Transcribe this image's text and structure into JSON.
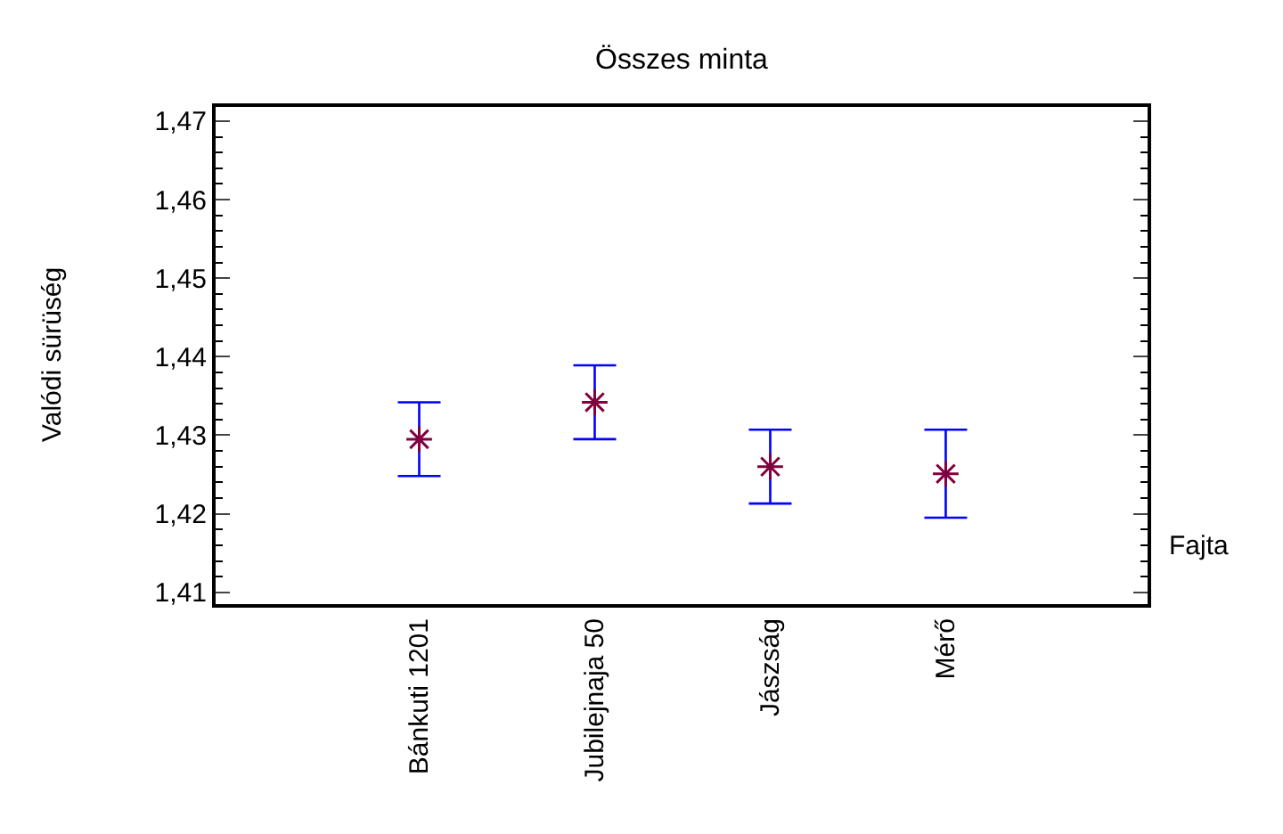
{
  "chart_data": {
    "type": "scatter",
    "title": "Összes minta",
    "xlabel": "Fajta",
    "ylabel": "Valódi sürüség",
    "categories": [
      "Bánkuti 1201",
      "Jubilejnaja 50",
      "Jászság",
      "Mérő"
    ],
    "series": [
      {
        "color": "#800040",
        "values": [
          1.4295,
          1.4342,
          1.426,
          1.4251
        ],
        "errors": [
          0.0047,
          0.0047,
          0.0047,
          0.0056
        ]
      }
    ],
    "ylim": [
      1.4085,
      1.4718
    ],
    "yticks": [
      {
        "value": 1.41,
        "label": "1,41"
      },
      {
        "value": 1.412,
        "label": null
      },
      {
        "value": 1.414,
        "label": null
      },
      {
        "value": 1.416,
        "label": null
      },
      {
        "value": 1.418,
        "label": null
      },
      {
        "value": 1.42,
        "label": "1,42"
      },
      {
        "value": 1.422,
        "label": null
      },
      {
        "value": 1.424,
        "label": null
      },
      {
        "value": 1.426,
        "label": null
      },
      {
        "value": 1.428,
        "label": null
      },
      {
        "value": 1.43,
        "label": "1,43"
      },
      {
        "value": 1.432,
        "label": null
      },
      {
        "value": 1.434,
        "label": null
      },
      {
        "value": 1.436,
        "label": null
      },
      {
        "value": 1.438,
        "label": null
      },
      {
        "value": 1.44,
        "label": "1,44"
      },
      {
        "value": 1.442,
        "label": null
      },
      {
        "value": 1.444,
        "label": null
      },
      {
        "value": 1.446,
        "label": null
      },
      {
        "value": 1.448,
        "label": null
      },
      {
        "value": 1.45,
        "label": "1,45"
      },
      {
        "value": 1.452,
        "label": null
      },
      {
        "value": 1.454,
        "label": null
      },
      {
        "value": 1.456,
        "label": null
      },
      {
        "value": 1.458,
        "label": null
      },
      {
        "value": 1.46,
        "label": "1,46"
      },
      {
        "value": 1.462,
        "label": null
      },
      {
        "value": 1.464,
        "label": null
      },
      {
        "value": 1.466,
        "label": null
      },
      {
        "value": 1.468,
        "label": null
      },
      {
        "value": 1.47,
        "label": "1,47"
      }
    ],
    "marker": "cross"
  }
}
